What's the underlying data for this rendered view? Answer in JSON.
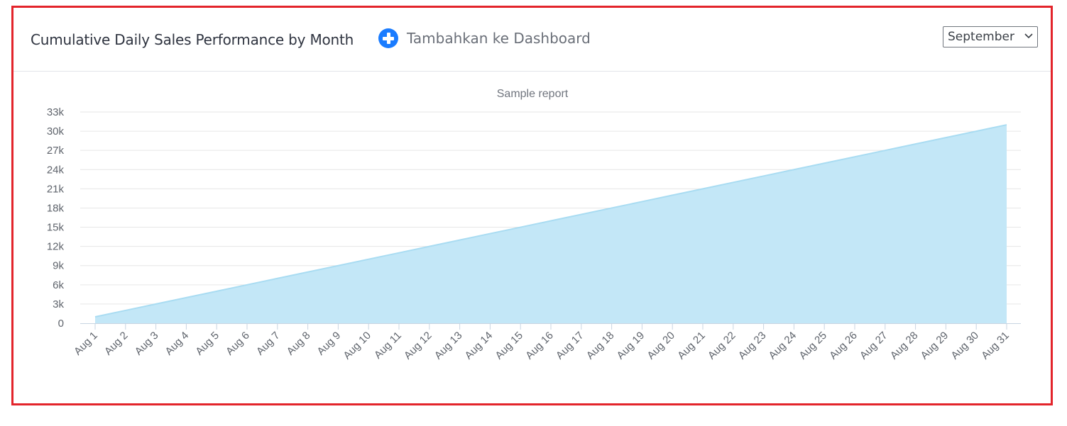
{
  "header": {
    "title": "Cumulative Daily Sales Performance by Month",
    "add_to_dashboard_label": "Tambahkan ke Dashboard",
    "month_select": {
      "selected": "September"
    }
  },
  "icons": {
    "add": "plus-circle-icon",
    "dropdown": "chevron-down-icon"
  },
  "colors": {
    "frame_border": "#e3242b",
    "accent": "#1a7cff",
    "area_fill": "#c3e7f7",
    "area_line": "#a9dcf2"
  },
  "chart_data": {
    "type": "area",
    "title": "Sample report",
    "xlabel": "",
    "ylabel": "",
    "x": [
      "Aug 1",
      "Aug 2",
      "Aug 3",
      "Aug 4",
      "Aug 5",
      "Aug 6",
      "Aug 7",
      "Aug 8",
      "Aug 9",
      "Aug 10",
      "Aug 11",
      "Aug 12",
      "Aug 13",
      "Aug 14",
      "Aug 15",
      "Aug 16",
      "Aug 17",
      "Aug 18",
      "Aug 19",
      "Aug 20",
      "Aug 21",
      "Aug 22",
      "Aug 23",
      "Aug 24",
      "Aug 25",
      "Aug 26",
      "Aug 27",
      "Aug 28",
      "Aug 29",
      "Aug 30",
      "Aug 31"
    ],
    "values": [
      1000,
      2000,
      3000,
      4000,
      5000,
      6000,
      7000,
      8000,
      9000,
      10000,
      11000,
      12000,
      13000,
      14000,
      15000,
      16000,
      17000,
      18000,
      19000,
      20000,
      21000,
      22000,
      23000,
      24000,
      25000,
      26000,
      27000,
      28000,
      29000,
      30000,
      31000
    ],
    "ylim": [
      0,
      33000
    ],
    "yticks": [
      0,
      3000,
      6000,
      9000,
      12000,
      15000,
      18000,
      21000,
      24000,
      27000,
      30000,
      33000
    ],
    "ytick_labels": [
      "0",
      "3k",
      "6k",
      "9k",
      "12k",
      "15k",
      "18k",
      "21k",
      "24k",
      "27k",
      "30k",
      "33k"
    ],
    "grid": true,
    "legend": "none"
  }
}
